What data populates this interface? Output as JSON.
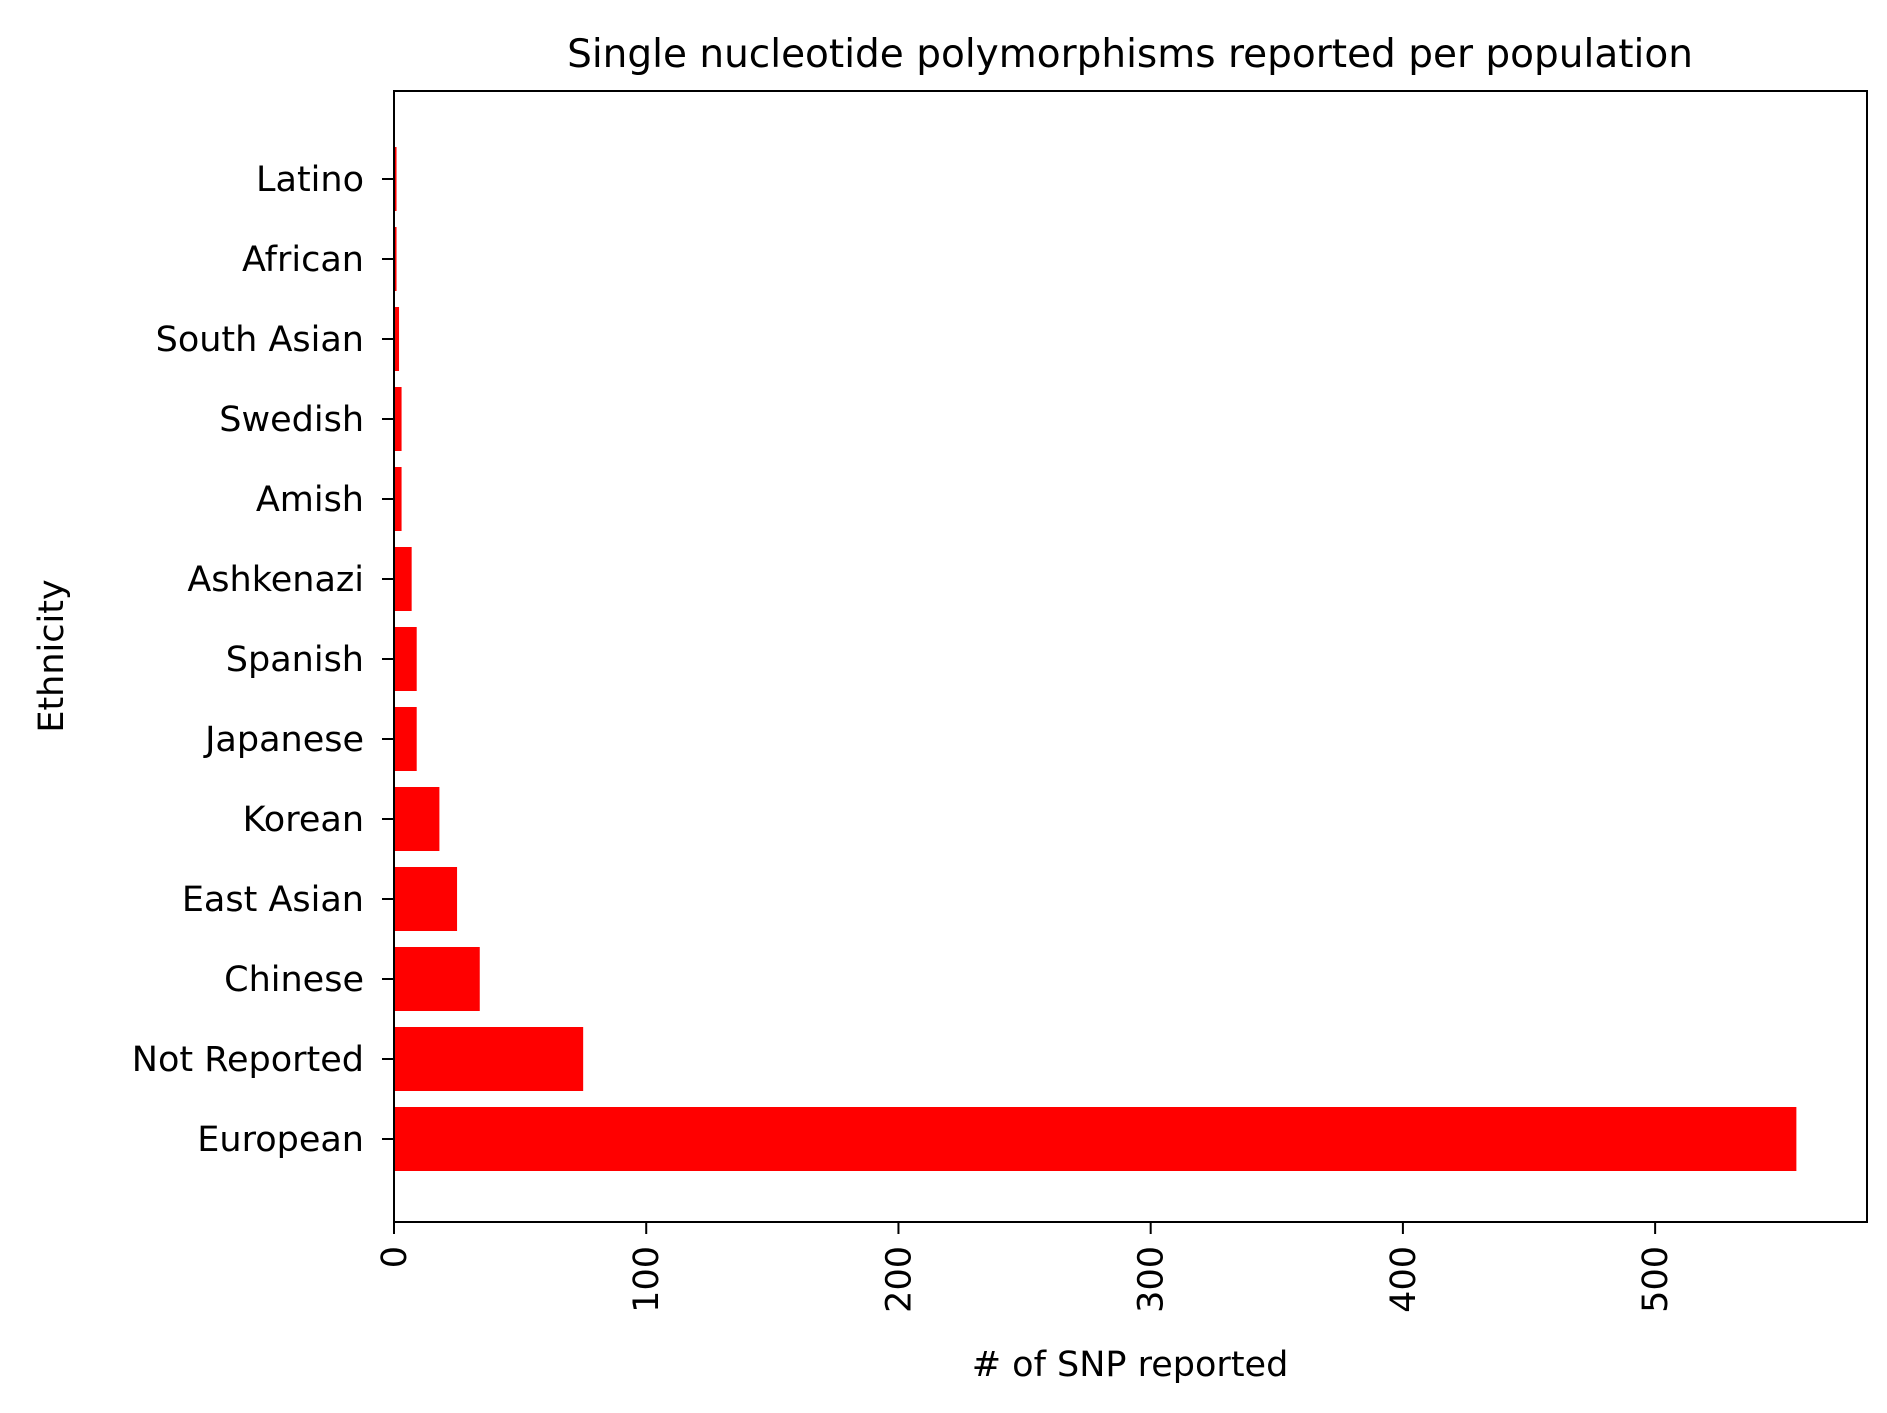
{
  "chart_data": {
    "type": "bar",
    "orientation": "horizontal",
    "title": "Single nucleotide polymorphisms reported per population",
    "xlabel": "# of SNP reported",
    "ylabel": "Ethnicity",
    "categories": [
      "European",
      "Not Reported",
      "Chinese",
      "East Asian",
      "Korean",
      "Japanese",
      "Spanish",
      "Ashkenazi",
      "Amish",
      "Swedish",
      "South Asian",
      "African",
      "Latino"
    ],
    "values": [
      556,
      75,
      34,
      25,
      18,
      9,
      9,
      7,
      3,
      3,
      2,
      1,
      1
    ],
    "xlim": [
      0,
      584
    ],
    "xticks": [
      0,
      100,
      200,
      300,
      400,
      500
    ],
    "bar_color": "#ff0000",
    "grid": false,
    "legend": "none"
  }
}
